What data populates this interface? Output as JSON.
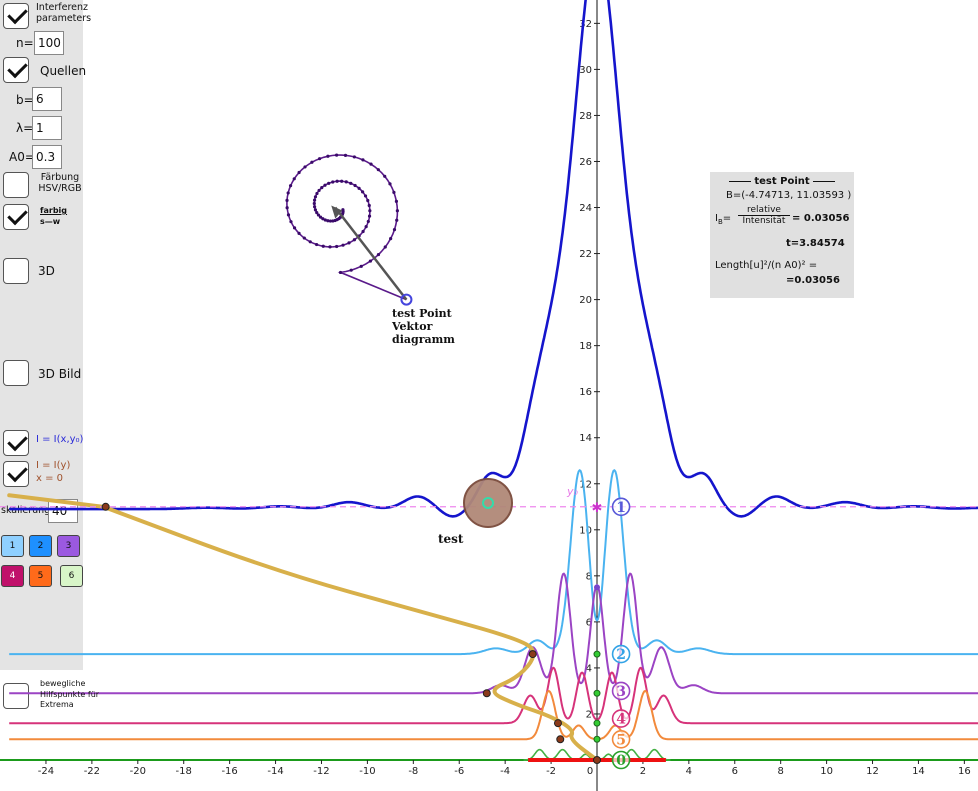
{
  "sidebar": {
    "interferenz_label": "Interferenz parameters",
    "n_label": "n=",
    "n_value": "100",
    "quellen_label": "Quellen",
    "b_label": "b=",
    "b_value": "6",
    "lambda_label": "λ=",
    "lambda_value": "1",
    "a0_label": "A0=",
    "a0_value": "0.3",
    "faerbung_label": "Färbung HSV/RGB",
    "farbig_label": "farbig",
    "sw_label": "s—w",
    "label_3d": "3D",
    "label_3d_bild": "3D Bild",
    "ixy_label": "I = I(x,y₀)",
    "iy_label": "I = I(y)",
    "x0_label": "x = 0",
    "skalierung_label": "skalierung",
    "skalierung_value": "40",
    "color_buttons": [
      {
        "label": "1",
        "color": "#8fd0ff"
      },
      {
        "label": "2",
        "color": "#1e90ff"
      },
      {
        "label": "3",
        "color": "#9b59e0"
      },
      {
        "label": "4",
        "color": "#c0106a"
      },
      {
        "label": "5",
        "color": "#ff6a1a"
      },
      {
        "label": "6",
        "color": "#d8f5c8"
      }
    ],
    "bewegliche_label": "bewegliche Hilfspunkte für Extrema"
  },
  "vector_label": [
    "test Point",
    "Vektor",
    "diagramm"
  ],
  "test_label": "test",
  "y0_label": "y₀",
  "info": {
    "title": "test Point",
    "coords": "B=(-4.74713, 11.03593 )",
    "ib_label": "I",
    "ib_sub": "B",
    "fraction_num": "relative",
    "fraction_den": "Intensität",
    "ib_value": "= 0.03056",
    "t_value": "t=3.84574",
    "length_label": "Length[u]²/(n A0)² =",
    "length_value": "=0.03056"
  },
  "chart_data": {
    "type": "line",
    "xlim": [
      -25.6,
      16.7
    ],
    "ylim": [
      -0.6,
      32.6
    ],
    "x_ticks": [
      -24,
      -22,
      -20,
      -18,
      -16,
      -14,
      -12,
      -10,
      -8,
      -6,
      -4,
      -2,
      0,
      2,
      4,
      6,
      8,
      10,
      12,
      14,
      16
    ],
    "y_ticks": [
      2,
      4,
      6,
      8,
      10,
      12,
      14,
      16,
      18,
      20,
      22,
      24,
      26,
      28,
      30,
      32
    ],
    "grid": false,
    "series_colors": {
      "main": "#1515cc",
      "s2": "#4ab3f0",
      "s3": "#9b44c4",
      "s4": "#d6337a",
      "s5": "#f28a3c",
      "s6": "#44b044",
      "gold": "#d8b04a"
    },
    "main_peak": 32.2,
    "baselines": {
      "s2": 4.6,
      "s3": 2.9,
      "s4": 1.6,
      "s5": 0.9,
      "s6": 0.0
    },
    "order_labels": [
      {
        "text": "1",
        "x": 0.7,
        "y": 11.0,
        "color": "#5858d8"
      },
      {
        "text": "2",
        "x": 0.7,
        "y": 4.6,
        "color": "#33a3e6"
      },
      {
        "text": "3",
        "x": 0.7,
        "y": 3.0,
        "color": "#9b44c4"
      },
      {
        "text": "4",
        "x": 0.7,
        "y": 1.8,
        "color": "#d6337a"
      },
      {
        "text": "5",
        "x": 0.7,
        "y": 0.9,
        "color": "#f28a3c"
      },
      {
        "text": "0",
        "x": 0.7,
        "y": 0.0,
        "color": "#2aa02a"
      }
    ],
    "test_point": {
      "x": -4.74713,
      "y": 11.03593
    }
  }
}
